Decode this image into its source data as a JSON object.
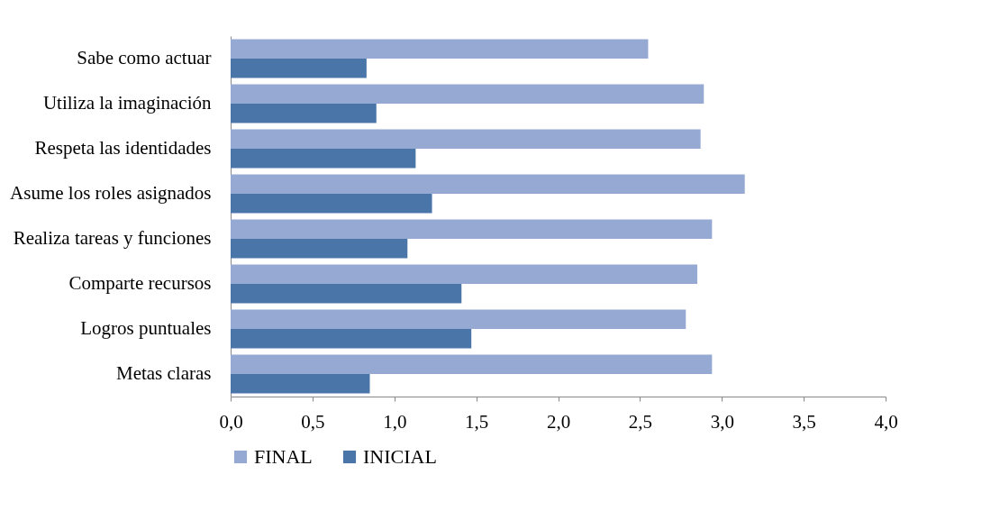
{
  "chart_data": {
    "type": "bar",
    "orientation": "horizontal",
    "categories": [
      "Sabe como actuar",
      "Utiliza la imaginación",
      "Respeta las identidades",
      "Asume los roles asignados",
      "Realiza tareas y funciones",
      "Comparte recursos",
      "Logros puntuales",
      "Metas claras"
    ],
    "series": [
      {
        "name": "FINAL",
        "color": "#95a9d3",
        "values": [
          2.55,
          2.89,
          2.87,
          3.14,
          2.94,
          2.85,
          2.78,
          2.94
        ]
      },
      {
        "name": "INICIAL",
        "color": "#4a75a8",
        "values": [
          0.83,
          0.89,
          1.13,
          1.23,
          1.08,
          1.41,
          1.47,
          0.85
        ]
      }
    ],
    "xlim": [
      0,
      4
    ],
    "xticks": [
      {
        "value": 0,
        "label": "0,0"
      },
      {
        "value": 0.5,
        "label": "0,5"
      },
      {
        "value": 1,
        "label": "1,0"
      },
      {
        "value": 1.5,
        "label": "1,5"
      },
      {
        "value": 2,
        "label": "2,0"
      },
      {
        "value": 2.5,
        "label": "2,5"
      },
      {
        "value": 3,
        "label": "3,0"
      },
      {
        "value": 3.5,
        "label": "3,5"
      },
      {
        "value": 4,
        "label": "4,0"
      }
    ],
    "grid": false,
    "legend": "bottom"
  }
}
